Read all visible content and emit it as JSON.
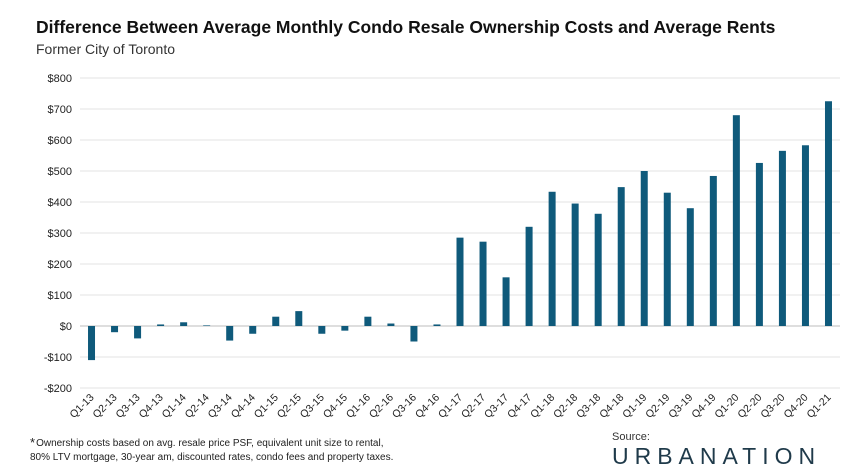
{
  "header": {
    "title": "Difference Between Average Monthly Condo Resale Ownership Costs and Average Rents",
    "subtitle": "Former City of Toronto"
  },
  "chart_data": {
    "type": "bar",
    "title": "Difference Between Average Monthly Condo Resale Ownership Costs and Average Rents",
    "subtitle": "Former City of Toronto",
    "xlabel": "",
    "ylabel": "",
    "ylim": [
      -200,
      800
    ],
    "yticks": [
      -200,
      -100,
      0,
      100,
      200,
      300,
      400,
      500,
      600,
      700,
      800
    ],
    "ytick_labels": [
      "-$200",
      "-$100",
      "$0",
      "$100",
      "$200",
      "$300",
      "$400",
      "$500",
      "$600",
      "$700",
      "$800"
    ],
    "grid": true,
    "legend": "none",
    "bar_color": "#0f5a7b",
    "categories": [
      "Q1-13",
      "Q2-13",
      "Q3-13",
      "Q4-13",
      "Q1-14",
      "Q2-14",
      "Q3-14",
      "Q4-14",
      "Q1-15",
      "Q2-15",
      "Q3-15",
      "Q4-15",
      "Q1-16",
      "Q2-16",
      "Q3-16",
      "Q4-16",
      "Q1-17",
      "Q2-17",
      "Q3-17",
      "Q4-17",
      "Q1-18",
      "Q2-18",
      "Q3-18",
      "Q4-18",
      "Q1-19",
      "Q2-19",
      "Q3-19",
      "Q4-19",
      "Q1-20",
      "Q2-20",
      "Q3-20",
      "Q4-20",
      "Q1-21"
    ],
    "values": [
      -110,
      -20,
      -40,
      5,
      12,
      2,
      -47,
      -25,
      30,
      48,
      -25,
      -15,
      30,
      8,
      -50,
      5,
      285,
      272,
      157,
      320,
      433,
      395,
      362,
      448,
      500,
      430,
      380,
      484,
      680,
      526,
      565,
      583,
      725
    ]
  },
  "footnote": {
    "marker": "*",
    "line1": "Ownership costs based on avg. resale price PSF, equivalent unit size to rental,",
    "line2": "80% LTV mortgage, 30-year am, discounted rates, condo fees and property taxes."
  },
  "source": {
    "label": "Source:",
    "logo_text": "URBANATION"
  }
}
